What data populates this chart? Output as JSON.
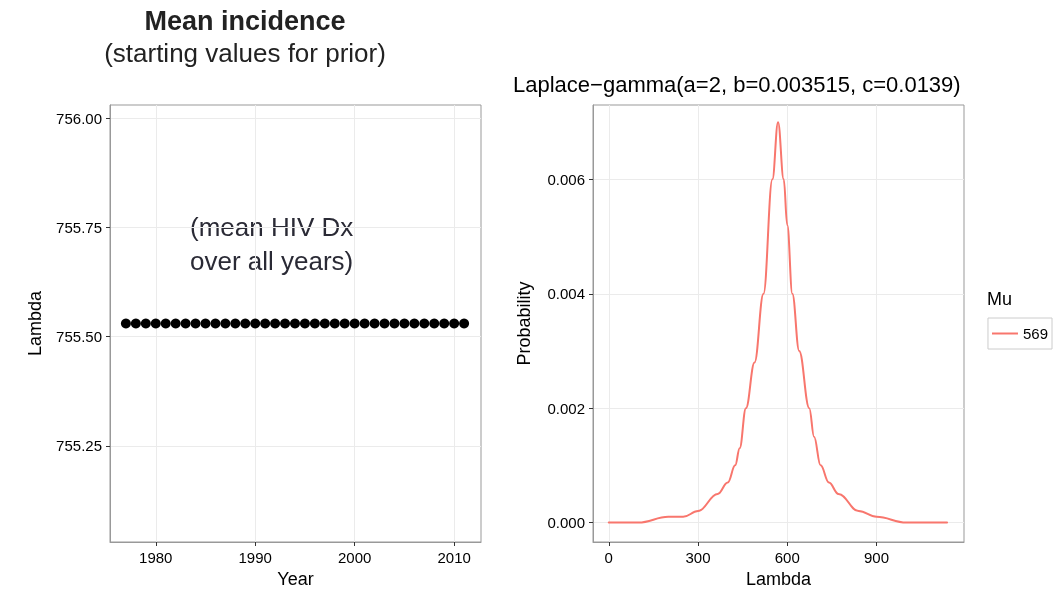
{
  "chart_data": [
    {
      "type": "scatter",
      "title": "Mean incidence",
      "subtitle": "(starting values for prior)",
      "xlabel": "Year",
      "ylabel": "Lambda",
      "annotations": [
        "(mean HIV Dx\nover all years)"
      ],
      "x": [
        1977,
        1978,
        1979,
        1980,
        1981,
        1982,
        1983,
        1984,
        1985,
        1986,
        1987,
        1988,
        1989,
        1990,
        1991,
        1992,
        1993,
        1994,
        1995,
        1996,
        1997,
        1998,
        1999,
        2000,
        2001,
        2002,
        2003,
        2004,
        2005,
        2006,
        2007,
        2008,
        2009,
        2010,
        2011
      ],
      "series": [
        {
          "color": "#000000",
          "values": [
            755.53,
            755.53,
            755.53,
            755.53,
            755.53,
            755.53,
            755.53,
            755.53,
            755.53,
            755.53,
            755.53,
            755.53,
            755.53,
            755.53,
            755.53,
            755.53,
            755.53,
            755.53,
            755.53,
            755.53,
            755.53,
            755.53,
            755.53,
            755.53,
            755.53,
            755.53,
            755.53,
            755.53,
            755.53,
            755.53,
            755.53,
            755.53,
            755.53,
            755.53,
            755.53
          ]
        }
      ],
      "xlim": [
        1975.4,
        2012.7
      ],
      "ylim": [
        755.03,
        756.03
      ],
      "xticks": [
        1980,
        1990,
        2000,
        2010
      ],
      "yticks": [
        {
          "value": 755.25,
          "label": "755.25"
        },
        {
          "value": 755.5,
          "label": "755.50"
        },
        {
          "value": 755.75,
          "label": "755.75"
        },
        {
          "value": 756,
          "label": "756.00"
        }
      ],
      "grid": true,
      "legend": false,
      "marker": "circle"
    },
    {
      "type": "line",
      "title": "Laplace−gamma(a=2, b=0.003515, c=0.0139)",
      "xlabel": "Lambda",
      "ylabel": "Probability",
      "legend_title": "Mu",
      "x": [
        0,
        100,
        200,
        250,
        300,
        366,
        400,
        425,
        440,
        461,
        490,
        520,
        550,
        569,
        588,
        600,
        617,
        640,
        674,
        690,
        712,
        740,
        772,
        840,
        900,
        1000,
        1137
      ],
      "series": [
        {
          "name": "569",
          "color": "#f8766d",
          "values": [
            0,
            0,
            0.0001,
            0.0001,
            0.0002,
            0.0005,
            0.0007,
            0.001,
            0.0013,
            0.002,
            0.0028,
            0.004,
            0.006,
            0.007,
            0.006,
            0.0052,
            0.004,
            0.003,
            0.002,
            0.0015,
            0.001,
            0.0007,
            0.0005,
            0.0002,
            0.0001,
            0,
            0
          ]
        }
      ],
      "xlim": [
        -53,
        1194
      ],
      "ylim": [
        -0.00034,
        0.0073
      ],
      "xticks": [
        0,
        300,
        600,
        900
      ],
      "yticks": [
        {
          "value": 0,
          "label": "0.000"
        },
        {
          "value": 0.002,
          "label": "0.002"
        },
        {
          "value": 0.004,
          "label": "0.004"
        },
        {
          "value": 0.006,
          "label": "0.006"
        }
      ],
      "grid": true,
      "legend": "right",
      "marker": "none",
      "line_style": "solid"
    }
  ]
}
